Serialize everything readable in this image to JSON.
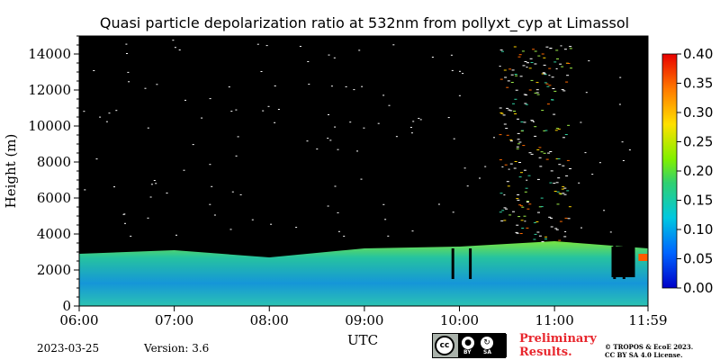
{
  "chart_data": {
    "type": "heatmap",
    "title": "Quasi particle depolarization ratio at 532nm from pollyxt_cyp at Limassol",
    "xlabel": "UTC",
    "ylabel": "Height (m)",
    "x_ticks": [
      "06:00",
      "07:00",
      "08:00",
      "09:00",
      "10:00",
      "11:00",
      "11:59"
    ],
    "y_ticks": [
      "0",
      "2000",
      "4000",
      "6000",
      "8000",
      "10000",
      "12000",
      "14000"
    ],
    "ylim": [
      0,
      15000
    ],
    "colorbar": {
      "range": [
        0.0,
        0.4
      ],
      "ticks": [
        "0.00",
        "0.05",
        "0.10",
        "0.15",
        "0.20",
        "0.25",
        "0.30",
        "0.35",
        "0.40"
      ],
      "colormap": "jet"
    },
    "background_color": "#000000",
    "layer": {
      "description_values_top_of_layer_m": [
        {
          "time": "06:00",
          "top": 2900
        },
        {
          "time": "07:00",
          "top": 3100
        },
        {
          "time": "08:00",
          "top": 2700
        },
        {
          "time": "09:00",
          "top": 3200
        },
        {
          "time": "10:00",
          "top": 3300
        },
        {
          "time": "11:00",
          "top": 3600
        },
        {
          "time": "11:59",
          "top": 3200
        }
      ],
      "typical_depol_near_ground": 0.08,
      "typical_depol_upper_layer": 0.15
    },
    "upper_cloud_region": {
      "time_start": "10:25",
      "time_end": "11:10",
      "height_min": 3500,
      "height_max": 14500,
      "depol": 0.2
    }
  },
  "footer": {
    "date": "2023-03-25",
    "version": "Version: 3.6",
    "preliminary_line1": "Preliminary",
    "preliminary_line2": "Results.",
    "copyright_line1": "© TROPOS & EcoE 2023.",
    "copyright_line2": "CC BY SA 4.0 License.",
    "cc_badge_text": "cc",
    "cc_by": "BY",
    "cc_sa": "SA"
  }
}
